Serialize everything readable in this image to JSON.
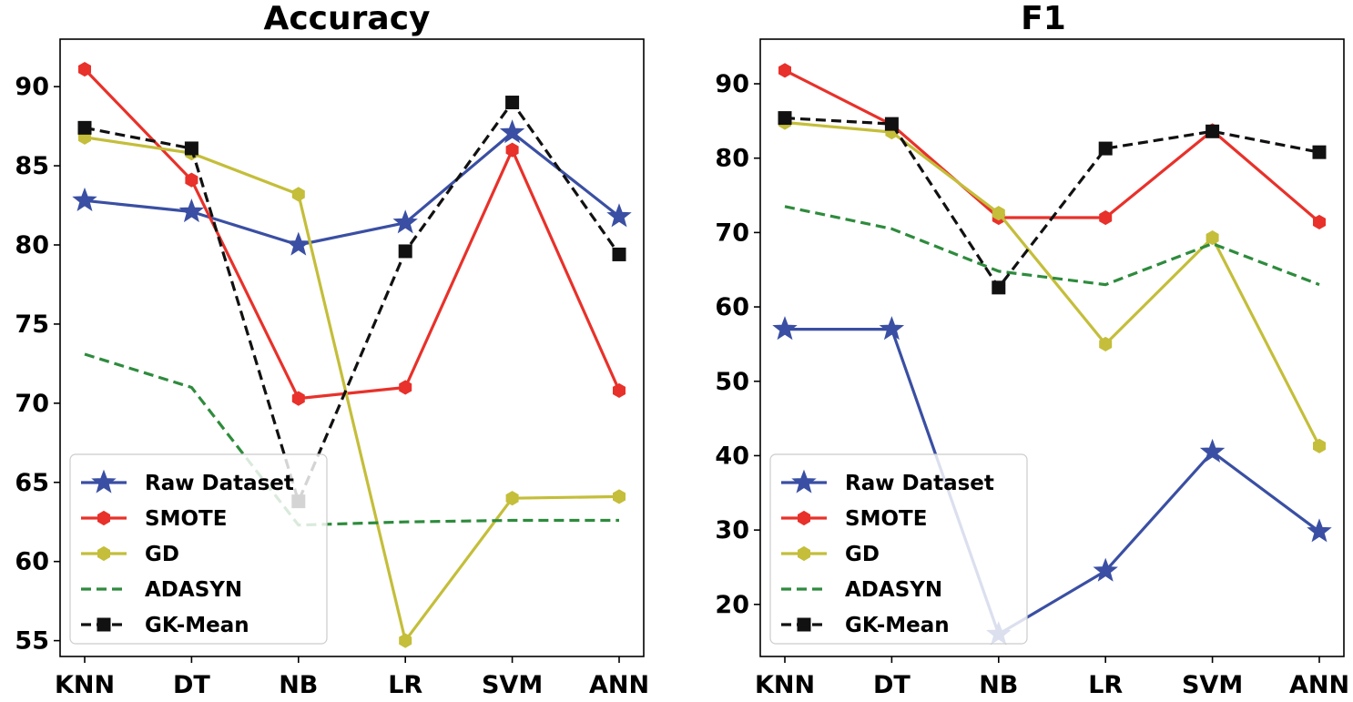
{
  "chart_data": [
    {
      "type": "line",
      "title": "Accuracy",
      "xlabel": "",
      "ylabel": "",
      "categories": [
        "KNN",
        "DT",
        "NB",
        "LR",
        "SVM",
        "ANN"
      ],
      "ylim": [
        54,
        93
      ],
      "yticks": [
        55,
        60,
        65,
        70,
        75,
        80,
        85,
        90
      ],
      "grid": false,
      "legend": "lower-left",
      "series": [
        {
          "name": "Raw Dataset",
          "color": "#3a4fa3",
          "marker": "star",
          "dash": "solid",
          "values": [
            82.8,
            82.1,
            80.0,
            81.4,
            87.1,
            81.8
          ]
        },
        {
          "name": "SMOTE",
          "color": "#e8312a",
          "marker": "hexagon",
          "dash": "solid",
          "values": [
            91.1,
            84.1,
            70.3,
            71.0,
            86.0,
            70.8
          ]
        },
        {
          "name": "GD",
          "color": "#c4be3a",
          "marker": "hexagon",
          "dash": "solid",
          "values": [
            86.8,
            85.8,
            83.2,
            55.0,
            64.0,
            64.1
          ]
        },
        {
          "name": "ADASYN",
          "color": "#2e8b3d",
          "marker": "none",
          "dash": "dashed",
          "values": [
            73.1,
            71.0,
            62.3,
            62.5,
            62.6,
            62.6
          ]
        },
        {
          "name": "GK-Mean",
          "color": "#111111",
          "marker": "square",
          "dash": "dashed",
          "values": [
            87.4,
            86.1,
            63.8,
            79.6,
            89.0,
            79.4
          ]
        }
      ]
    },
    {
      "type": "line",
      "title": "F1",
      "xlabel": "",
      "ylabel": "",
      "categories": [
        "KNN",
        "DT",
        "NB",
        "LR",
        "SVM",
        "ANN"
      ],
      "ylim": [
        13,
        96
      ],
      "yticks": [
        20,
        30,
        40,
        50,
        60,
        70,
        80,
        90
      ],
      "grid": false,
      "legend": "lower-left",
      "series": [
        {
          "name": "Raw Dataset",
          "color": "#3a4fa3",
          "marker": "star",
          "dash": "solid",
          "values": [
            57.0,
            57.0,
            16.0,
            24.5,
            40.5,
            29.8
          ]
        },
        {
          "name": "SMOTE",
          "color": "#e8312a",
          "marker": "hexagon",
          "dash": "solid",
          "values": [
            91.8,
            84.5,
            72.0,
            72.0,
            83.7,
            71.4
          ]
        },
        {
          "name": "GD",
          "color": "#c4be3a",
          "marker": "hexagon",
          "dash": "solid",
          "values": [
            84.8,
            83.5,
            72.6,
            55.0,
            69.3,
            41.3
          ]
        },
        {
          "name": "ADASYN",
          "color": "#2e8b3d",
          "marker": "none",
          "dash": "dashed",
          "values": [
            73.5,
            70.5,
            64.8,
            63.0,
            68.5,
            63.0
          ]
        },
        {
          "name": "GK-Mean",
          "color": "#111111",
          "marker": "square",
          "dash": "dashed",
          "values": [
            85.4,
            84.6,
            62.6,
            81.3,
            83.6,
            80.8
          ]
        }
      ]
    }
  ]
}
